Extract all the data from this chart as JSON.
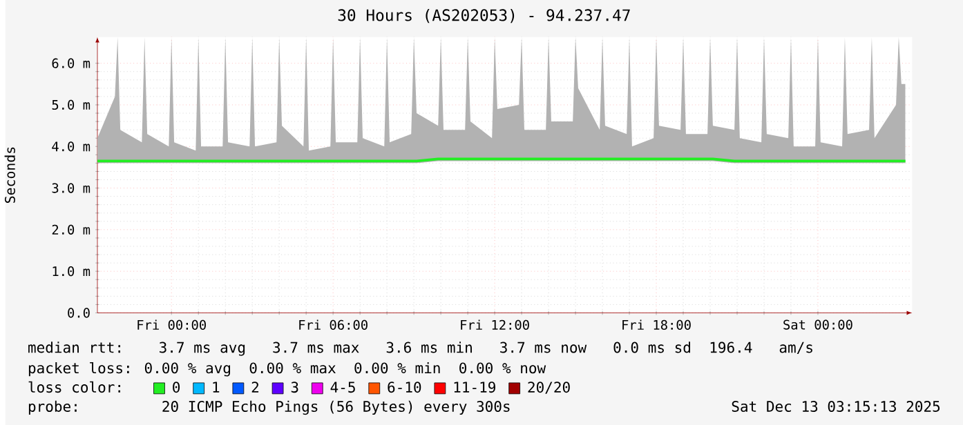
{
  "chart_data": {
    "type": "line",
    "title": "30 Hours (AS202053) - 94.237.47",
    "ylabel": "Seconds",
    "legend_title": "loss color:",
    "legend": "bottom",
    "grid": true,
    "marker": "none",
    "line_style": "solid",
    "xlim": [
      "2025-12-11T21:15",
      "2025-12-13T03:30"
    ],
    "xticks": [
      {
        "value": "2025-12-12T00:00",
        "label": "Fri 00:00"
      },
      {
        "value": "2025-12-12T06:00",
        "label": "Fri 06:00"
      },
      {
        "value": "2025-12-12T12:00",
        "label": "Fri 12:00"
      },
      {
        "value": "2025-12-12T18:00",
        "label": "Fri 18:00"
      },
      {
        "value": "2025-12-13T00:00",
        "label": "Sat 00:00"
      }
    ],
    "ylim": [
      0,
      6.63
    ],
    "yticks": [
      {
        "value": 0,
        "label": "0.0"
      },
      {
        "value": 1,
        "label": "1.0 m"
      },
      {
        "value": 2,
        "label": "2.0 m"
      },
      {
        "value": 3,
        "label": "3.0 m"
      },
      {
        "value": 4,
        "label": "4.0 m"
      },
      {
        "value": 5,
        "label": "5.0 m"
      },
      {
        "value": 6,
        "label": "6.0 m"
      }
    ],
    "x": [
      "2025-12-11T21:15",
      "2025-12-11T21:54",
      "2025-12-11T22:00",
      "2025-12-11T22:06",
      "2025-12-11T22:54",
      "2025-12-11T23:00",
      "2025-12-11T23:06",
      "2025-12-11T23:54",
      "2025-12-12T00:00",
      "2025-12-12T00:06",
      "2025-12-12T00:54",
      "2025-12-12T01:00",
      "2025-12-12T01:06",
      "2025-12-12T01:54",
      "2025-12-12T02:00",
      "2025-12-12T02:06",
      "2025-12-12T02:54",
      "2025-12-12T03:00",
      "2025-12-12T03:06",
      "2025-12-12T03:54",
      "2025-12-12T04:00",
      "2025-12-12T04:06",
      "2025-12-12T04:54",
      "2025-12-12T05:00",
      "2025-12-12T05:06",
      "2025-12-12T05:54",
      "2025-12-12T06:00",
      "2025-12-12T06:06",
      "2025-12-12T06:54",
      "2025-12-12T07:00",
      "2025-12-12T07:06",
      "2025-12-12T07:54",
      "2025-12-12T08:00",
      "2025-12-12T08:06",
      "2025-12-12T08:54",
      "2025-12-12T09:00",
      "2025-12-12T09:06",
      "2025-12-12T09:54",
      "2025-12-12T10:00",
      "2025-12-12T10:06",
      "2025-12-12T10:54",
      "2025-12-12T11:00",
      "2025-12-12T11:06",
      "2025-12-12T11:54",
      "2025-12-12T12:00",
      "2025-12-12T12:06",
      "2025-12-12T12:54",
      "2025-12-12T13:00",
      "2025-12-12T13:06",
      "2025-12-12T13:54",
      "2025-12-12T14:00",
      "2025-12-12T14:06",
      "2025-12-12T14:54",
      "2025-12-12T15:00",
      "2025-12-12T15:06",
      "2025-12-12T15:54",
      "2025-12-12T16:00",
      "2025-12-12T16:06",
      "2025-12-12T16:54",
      "2025-12-12T17:00",
      "2025-12-12T17:06",
      "2025-12-12T17:54",
      "2025-12-12T18:00",
      "2025-12-12T18:06",
      "2025-12-12T18:54",
      "2025-12-12T19:00",
      "2025-12-12T19:06",
      "2025-12-12T19:54",
      "2025-12-12T20:00",
      "2025-12-12T20:06",
      "2025-12-12T20:54",
      "2025-12-12T21:00",
      "2025-12-12T21:06",
      "2025-12-12T21:54",
      "2025-12-12T22:00",
      "2025-12-12T22:06",
      "2025-12-12T22:54",
      "2025-12-12T23:00",
      "2025-12-12T23:06",
      "2025-12-12T23:54",
      "2025-12-13T00:00",
      "2025-12-13T00:06",
      "2025-12-13T00:54",
      "2025-12-13T01:00",
      "2025-12-13T01:06",
      "2025-12-13T01:54",
      "2025-12-13T02:00",
      "2025-12-13T02:06",
      "2025-12-13T02:54",
      "2025-12-13T03:00",
      "2025-12-13T03:06",
      "2025-12-13T03:15"
    ],
    "series": [
      {
        "name": "0",
        "color": "#22ee22",
        "values": [
          3.65,
          3.65,
          3.65,
          3.65,
          3.65,
          3.65,
          3.65,
          3.65,
          3.65,
          3.65,
          3.65,
          3.65,
          3.65,
          3.65,
          3.65,
          3.65,
          3.65,
          3.65,
          3.65,
          3.65,
          3.65,
          3.65,
          3.65,
          3.65,
          3.65,
          3.65,
          3.65,
          3.65,
          3.65,
          3.65,
          3.65,
          3.65,
          3.65,
          3.65,
          3.65,
          3.65,
          3.65,
          3.7,
          3.7,
          3.7,
          3.7,
          3.7,
          3.7,
          3.7,
          3.7,
          3.7,
          3.7,
          3.7,
          3.7,
          3.7,
          3.7,
          3.7,
          3.7,
          3.7,
          3.7,
          3.7,
          3.7,
          3.7,
          3.7,
          3.7,
          3.7,
          3.7,
          3.7,
          3.7,
          3.7,
          3.7,
          3.7,
          3.7,
          3.7,
          3.7,
          3.65,
          3.65,
          3.65,
          3.65,
          3.65,
          3.65,
          3.65,
          3.65,
          3.65,
          3.65,
          3.65,
          3.65,
          3.65,
          3.65,
          3.65,
          3.65,
          3.65,
          3.65,
          3.65,
          3.65,
          3.65,
          3.65
        ],
        "lower": [
          3.6,
          3.6,
          3.6,
          3.6,
          3.6,
          3.6,
          3.6,
          3.6,
          3.6,
          3.6,
          3.6,
          3.6,
          3.6,
          3.6,
          3.6,
          3.6,
          3.6,
          3.6,
          3.6,
          3.6,
          3.6,
          3.6,
          3.6,
          3.6,
          3.6,
          3.6,
          3.6,
          3.6,
          3.6,
          3.6,
          3.6,
          3.6,
          3.6,
          3.6,
          3.6,
          3.6,
          3.6,
          3.65,
          3.65,
          3.65,
          3.65,
          3.65,
          3.65,
          3.65,
          3.65,
          3.65,
          3.65,
          3.65,
          3.65,
          3.65,
          3.65,
          3.65,
          3.65,
          3.65,
          3.65,
          3.65,
          3.65,
          3.65,
          3.65,
          3.65,
          3.65,
          3.65,
          3.65,
          3.65,
          3.65,
          3.65,
          3.65,
          3.65,
          3.65,
          3.65,
          3.6,
          3.6,
          3.6,
          3.6,
          3.6,
          3.6,
          3.6,
          3.6,
          3.6,
          3.6,
          3.6,
          3.6,
          3.6,
          3.6,
          3.6,
          3.6,
          3.6,
          3.6,
          3.6,
          3.6,
          3.6,
          3.6
        ],
        "upper": [
          4.2,
          5.2,
          6.63,
          4.4,
          4.1,
          6.63,
          4.3,
          4.0,
          6.63,
          4.1,
          3.9,
          6.63,
          4.0,
          4.0,
          6.63,
          4.1,
          4.0,
          6.63,
          4.0,
          4.1,
          6.63,
          4.5,
          4.0,
          6.63,
          3.9,
          4.0,
          6.63,
          4.1,
          4.1,
          6.63,
          4.2,
          4.0,
          6.63,
          4.1,
          4.3,
          6.63,
          4.8,
          4.5,
          6.63,
          4.4,
          4.4,
          6.63,
          4.6,
          4.2,
          6.63,
          4.9,
          5.0,
          6.63,
          4.4,
          4.4,
          6.63,
          4.6,
          4.6,
          6.63,
          5.4,
          4.4,
          6.63,
          4.5,
          4.3,
          6.63,
          4.0,
          4.2,
          6.63,
          4.5,
          4.4,
          6.63,
          4.3,
          4.3,
          6.63,
          4.5,
          4.4,
          6.63,
          4.2,
          4.1,
          6.63,
          4.3,
          4.2,
          6.63,
          4.0,
          4.0,
          6.63,
          4.1,
          4.0,
          6.63,
          4.3,
          4.4,
          6.63,
          4.2,
          5.0,
          6.63,
          5.5,
          5.5
        ]
      },
      {
        "name": "1",
        "color": "#00b8ff",
        "values": [
          null,
          null,
          null,
          null,
          null,
          null,
          null,
          null,
          null,
          null,
          null,
          null,
          null,
          null,
          null,
          null,
          null,
          null,
          null,
          null,
          null,
          null,
          null,
          null,
          null,
          null,
          null,
          null,
          null,
          null,
          null,
          null,
          null,
          null,
          null,
          null,
          null,
          null,
          null,
          null,
          null,
          null,
          null,
          null,
          null,
          null,
          null,
          null,
          null,
          null,
          null,
          null,
          null,
          null,
          null,
          null,
          null,
          null,
          null,
          null,
          null,
          null,
          null,
          null,
          null,
          null,
          null,
          null,
          null,
          null,
          null,
          null,
          null,
          null,
          null,
          null,
          null,
          null,
          null,
          null,
          null,
          null,
          null,
          null,
          null,
          null,
          null,
          null,
          null,
          null,
          null,
          null
        ]
      },
      {
        "name": "2",
        "color": "#0059ff",
        "values": [
          null,
          null,
          null,
          null,
          null,
          null,
          null,
          null,
          null,
          null,
          null,
          null,
          null,
          null,
          null,
          null,
          null,
          null,
          null,
          null,
          null,
          null,
          null,
          null,
          null,
          null,
          null,
          null,
          null,
          null,
          null,
          null,
          null,
          null,
          null,
          null,
          null,
          null,
          null,
          null,
          null,
          null,
          null,
          null,
          null,
          null,
          null,
          null,
          null,
          null,
          null,
          null,
          null,
          null,
          null,
          null,
          null,
          null,
          null,
          null,
          null,
          null,
          null,
          null,
          null,
          null,
          null,
          null,
          null,
          null,
          null,
          null,
          null,
          null,
          null,
          null,
          null,
          null,
          null,
          null,
          null,
          null,
          null,
          null,
          null,
          null,
          null,
          null,
          null,
          null,
          null,
          null
        ]
      },
      {
        "name": "3",
        "color": "#5e00ff",
        "values": [
          null,
          null,
          null,
          null,
          null,
          null,
          null,
          null,
          null,
          null,
          null,
          null,
          null,
          null,
          null,
          null,
          null,
          null,
          null,
          null,
          null,
          null,
          null,
          null,
          null,
          null,
          null,
          null,
          null,
          null,
          null,
          null,
          null,
          null,
          null,
          null,
          null,
          null,
          null,
          null,
          null,
          null,
          null,
          null,
          null,
          null,
          null,
          null,
          null,
          null,
          null,
          null,
          null,
          null,
          null,
          null,
          null,
          null,
          null,
          null,
          null,
          null,
          null,
          null,
          null,
          null,
          null,
          null,
          null,
          null,
          null,
          null,
          null,
          null,
          null,
          null,
          null,
          null,
          null,
          null,
          null,
          null,
          null,
          null,
          null,
          null,
          null,
          null,
          null,
          null,
          null,
          null
        ]
      },
      {
        "name": "4-5",
        "color": "#ee00ee",
        "values": [
          null,
          null,
          null,
          null,
          null,
          null,
          null,
          null,
          null,
          null,
          null,
          null,
          null,
          null,
          null,
          null,
          null,
          null,
          null,
          null,
          null,
          null,
          null,
          null,
          null,
          null,
          null,
          null,
          null,
          null,
          null,
          null,
          null,
          null,
          null,
          null,
          null,
          null,
          null,
          null,
          null,
          null,
          null,
          null,
          null,
          null,
          null,
          null,
          null,
          null,
          null,
          null,
          null,
          null,
          null,
          null,
          null,
          null,
          null,
          null,
          null,
          null,
          null,
          null,
          null,
          null,
          null,
          null,
          null,
          null,
          null,
          null,
          null,
          null,
          null,
          null,
          null,
          null,
          null,
          null,
          null,
          null,
          null,
          null,
          null,
          null,
          null,
          null,
          null,
          null,
          null,
          null
        ]
      },
      {
        "name": "6-10",
        "color": "#ff5500",
        "values": [
          null,
          null,
          null,
          null,
          null,
          null,
          null,
          null,
          null,
          null,
          null,
          null,
          null,
          null,
          null,
          null,
          null,
          null,
          null,
          null,
          null,
          null,
          null,
          null,
          null,
          null,
          null,
          null,
          null,
          null,
          null,
          null,
          null,
          null,
          null,
          null,
          null,
          null,
          null,
          null,
          null,
          null,
          null,
          null,
          null,
          null,
          null,
          null,
          null,
          null,
          null,
          null,
          null,
          null,
          null,
          null,
          null,
          null,
          null,
          null,
          null,
          null,
          null,
          null,
          null,
          null,
          null,
          null,
          null,
          null,
          null,
          null,
          null,
          null,
          null,
          null,
          null,
          null,
          null,
          null,
          null,
          null,
          null,
          null,
          null,
          null,
          null,
          null,
          null,
          null,
          null,
          null
        ]
      },
      {
        "name": "11-19",
        "color": "#ff0000",
        "values": [
          null,
          null,
          null,
          null,
          null,
          null,
          null,
          null,
          null,
          null,
          null,
          null,
          null,
          null,
          null,
          null,
          null,
          null,
          null,
          null,
          null,
          null,
          null,
          null,
          null,
          null,
          null,
          null,
          null,
          null,
          null,
          null,
          null,
          null,
          null,
          null,
          null,
          null,
          null,
          null,
          null,
          null,
          null,
          null,
          null,
          null,
          null,
          null,
          null,
          null,
          null,
          null,
          null,
          null,
          null,
          null,
          null,
          null,
          null,
          null,
          null,
          null,
          null,
          null,
          null,
          null,
          null,
          null,
          null,
          null,
          null,
          null,
          null,
          null,
          null,
          null,
          null,
          null,
          null,
          null,
          null,
          null,
          null,
          null,
          null,
          null,
          null,
          null,
          null,
          null,
          null,
          null
        ]
      },
      {
        "name": "20/20",
        "color": "#a10000",
        "values": [
          null,
          null,
          null,
          null,
          null,
          null,
          null,
          null,
          null,
          null,
          null,
          null,
          null,
          null,
          null,
          null,
          null,
          null,
          null,
          null,
          null,
          null,
          null,
          null,
          null,
          null,
          null,
          null,
          null,
          null,
          null,
          null,
          null,
          null,
          null,
          null,
          null,
          null,
          null,
          null,
          null,
          null,
          null,
          null,
          null,
          null,
          null,
          null,
          null,
          null,
          null,
          null,
          null,
          null,
          null,
          null,
          null,
          null,
          null,
          null,
          null,
          null,
          null,
          null,
          null,
          null,
          null,
          null,
          null,
          null,
          null,
          null,
          null,
          null,
          null,
          null,
          null,
          null,
          null,
          null,
          null,
          null,
          null,
          null,
          null,
          null,
          null,
          null,
          null,
          null,
          null,
          null
        ]
      }
    ],
    "annotations": [
      "median rtt:   3.7 ms avg   3.7 ms max   3.6 ms min   3.7 ms now   0.0 ms sd  196.4   am/s",
      "packet loss: 0.00 % avg  0.00 % max  0.00 % min  0.00 % now",
      "probe:       20 ICMP Echo Pings (56 Bytes) every 300s",
      "Sat Dec 13 03:15:13 2025"
    ]
  }
}
